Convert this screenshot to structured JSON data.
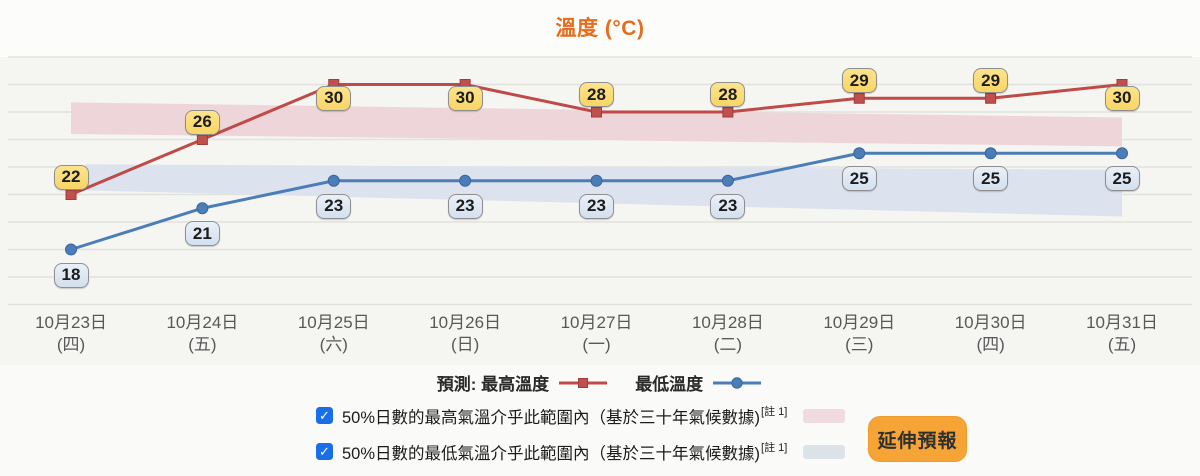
{
  "header": {
    "title": "溫度 (°C)"
  },
  "chart_data": {
    "type": "line",
    "title": "溫度 (°C)",
    "categories": [
      {
        "date": "10月23日",
        "weekday": "(四)"
      },
      {
        "date": "10月24日",
        "weekday": "(五)"
      },
      {
        "date": "10月25日",
        "weekday": "(六)"
      },
      {
        "date": "10月26日",
        "weekday": "(日)"
      },
      {
        "date": "10月27日",
        "weekday": "(一)"
      },
      {
        "date": "10月28日",
        "weekday": "(二)"
      },
      {
        "date": "10月29日",
        "weekday": "(三)"
      },
      {
        "date": "10月30日",
        "weekday": "(四)"
      },
      {
        "date": "10月31日",
        "weekday": "(五)"
      }
    ],
    "series": [
      {
        "name": "最高溫度",
        "kind": "max",
        "color": "#bf4a47",
        "marker": "square",
        "marker_fill": "#c0504d",
        "marker_stroke": "#9e3d3b",
        "values": [
          22,
          26,
          30,
          30,
          28,
          28,
          29,
          29,
          30
        ],
        "label_side": [
          "above",
          "above",
          "below",
          "below",
          "above",
          "above",
          "above",
          "above",
          "below"
        ]
      },
      {
        "name": "最低溫度",
        "kind": "min",
        "color": "#4b7db8",
        "marker": "circle",
        "marker_fill": "#4b7db8",
        "marker_stroke": "#3a669c",
        "values": [
          18,
          21,
          23,
          23,
          23,
          23,
          25,
          25,
          25
        ],
        "label_side": [
          "below",
          "below",
          "below",
          "below",
          "below",
          "below",
          "below",
          "below",
          "below"
        ]
      }
    ],
    "bands": [
      {
        "name": "max-climate-band",
        "color": "#eed5d9",
        "temp_top": [
          28.7,
          27.6
        ],
        "temp_bottom": [
          26.4,
          25.5
        ]
      },
      {
        "name": "min-climate-band",
        "color": "#dce3ee",
        "temp_top": [
          24.2,
          23.8
        ],
        "temp_bottom": [
          22.3,
          20.4
        ]
      }
    ],
    "ylim": [
      14,
      32
    ],
    "grid_step": 2,
    "grid": true,
    "legend_position": "bottom"
  },
  "legend": {
    "prefix": "預測: 最高溫度",
    "min_label": "最低溫度"
  },
  "controls": {
    "rows": [
      {
        "label": "50%日數的最高氣溫介乎此範圍內（基於三十年氣候數據)",
        "note": "[註 1]",
        "checked": true,
        "check_glyph": "✓",
        "swatch_color": "#f0dbe0"
      },
      {
        "label": "50%日數的最低氣溫介乎此範圍內（基於三十年氣候數據)",
        "note": "[註 1]",
        "checked": true,
        "check_glyph": "✓",
        "swatch_color": "#dbe3e9"
      }
    ]
  },
  "button": {
    "label": "延伸預報"
  }
}
